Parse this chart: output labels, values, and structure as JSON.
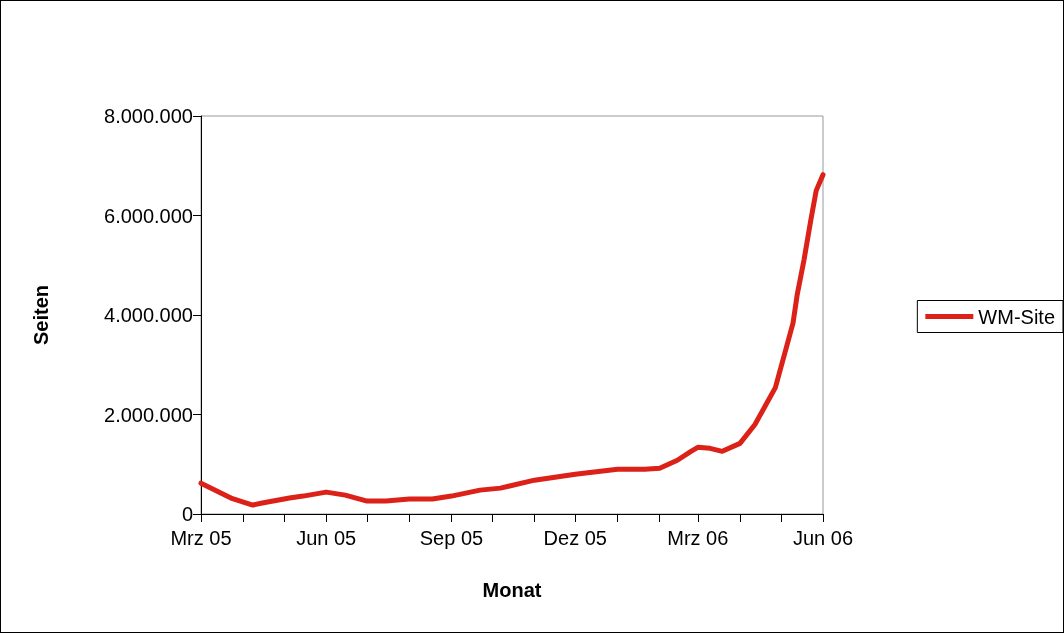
{
  "chart_data": {
    "type": "line",
    "xlabel": "Monat",
    "ylabel": "Seiten",
    "x": [
      "2005-03-01",
      "2005-03-23",
      "2005-04-08",
      "2005-04-15",
      "2005-05-05",
      "2005-05-15",
      "2005-06-01",
      "2005-06-15",
      "2005-07-01",
      "2005-07-15",
      "2005-08-01",
      "2005-08-18",
      "2005-09-01",
      "2005-09-22",
      "2005-10-07",
      "2005-11-01",
      "2005-12-01",
      "2006-01-01",
      "2006-01-21",
      "2006-02-01",
      "2006-02-14",
      "2006-02-24",
      "2006-03-01",
      "2006-03-10",
      "2006-03-19",
      "2006-04-01",
      "2006-04-12",
      "2006-04-27",
      "2006-05-05",
      "2006-05-10",
      "2006-05-13",
      "2006-05-18",
      "2006-05-23",
      "2006-05-27",
      "2006-06-01"
    ],
    "series": [
      {
        "name": "WM-Site",
        "color": "#dc2118",
        "values": [
          620000,
          320000,
          180000,
          220000,
          320000,
          360000,
          440000,
          380000,
          260000,
          260000,
          300000,
          300000,
          360000,
          480000,
          520000,
          680000,
          800000,
          900000,
          900000,
          920000,
          1080000,
          1260000,
          1340000,
          1320000,
          1260000,
          1420000,
          1800000,
          2540000,
          3340000,
          3840000,
          4400000,
          5100000,
          5900000,
          6500000,
          6820000
        ]
      }
    ],
    "xlim": [
      "2005-03-01",
      "2006-06-01"
    ],
    "xticks": [
      {
        "value": "2005-03-01",
        "label": "Mrz 05"
      },
      {
        "value": "2005-04-01",
        "label": null
      },
      {
        "value": "2005-05-01",
        "label": null
      },
      {
        "value": "2005-06-01",
        "label": "Jun 05"
      },
      {
        "value": "2005-07-01",
        "label": null
      },
      {
        "value": "2005-08-01",
        "label": null
      },
      {
        "value": "2005-09-01",
        "label": "Sep 05"
      },
      {
        "value": "2005-10-01",
        "label": null
      },
      {
        "value": "2005-11-01",
        "label": null
      },
      {
        "value": "2005-12-01",
        "label": "Dez 05"
      },
      {
        "value": "2006-01-01",
        "label": null
      },
      {
        "value": "2006-02-01",
        "label": null
      },
      {
        "value": "2006-03-01",
        "label": "Mrz 06"
      },
      {
        "value": "2006-04-01",
        "label": null
      },
      {
        "value": "2006-05-01",
        "label": null
      },
      {
        "value": "2006-06-01",
        "label": "Jun 06"
      }
    ],
    "ylim": [
      0,
      8000000
    ],
    "yticks": [
      {
        "value": 0,
        "label": "0"
      },
      {
        "value": 2000000,
        "label": "2.000.000"
      },
      {
        "value": 4000000,
        "label": "4.000.000"
      },
      {
        "value": 6000000,
        "label": "6.000.000"
      },
      {
        "value": 8000000,
        "label": "8.000.000"
      }
    ],
    "grid": false,
    "legend": "right",
    "marker": "none",
    "line_style": "solid"
  }
}
